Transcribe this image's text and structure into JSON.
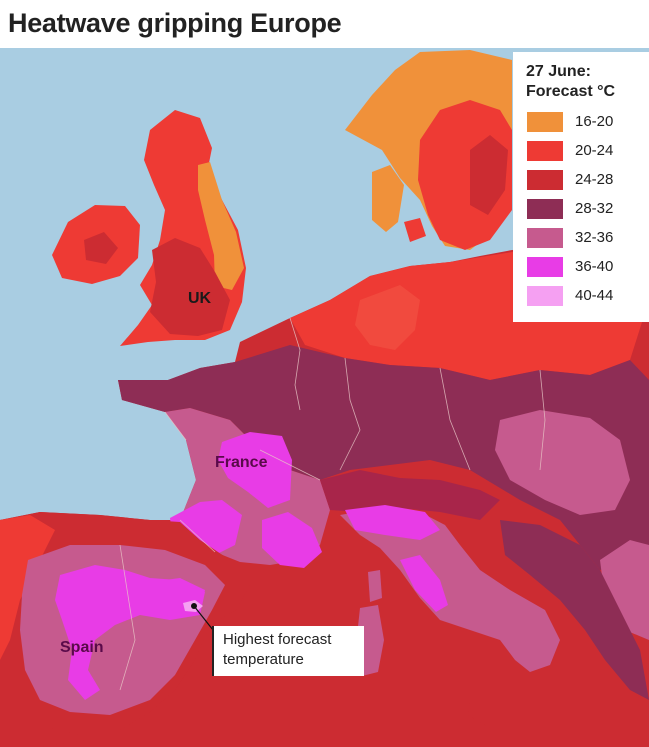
{
  "title": "Heatwave gripping Europe",
  "legend": {
    "title_line1": "27 June:",
    "title_line2": "Forecast °C",
    "items": [
      {
        "label": "16-20",
        "color": "#f0913a"
      },
      {
        "label": "20-24",
        "color": "#ee3a34"
      },
      {
        "label": "24-28",
        "color": "#cc2c32"
      },
      {
        "label": "28-32",
        "color": "#8e2d55"
      },
      {
        "label": "32-36",
        "color": "#c65a8e"
      },
      {
        "label": "36-40",
        "color": "#e83ce6"
      },
      {
        "label": "40-44",
        "color": "#f5a0f2"
      }
    ]
  },
  "labels": {
    "uk": "UK",
    "france": "France",
    "spain": "Spain"
  },
  "annotation": {
    "line1": "Highest forecast",
    "line2": "temperature"
  },
  "colors": {
    "sea": "#a9cde2",
    "land_outside": "#c9c4ba"
  }
}
